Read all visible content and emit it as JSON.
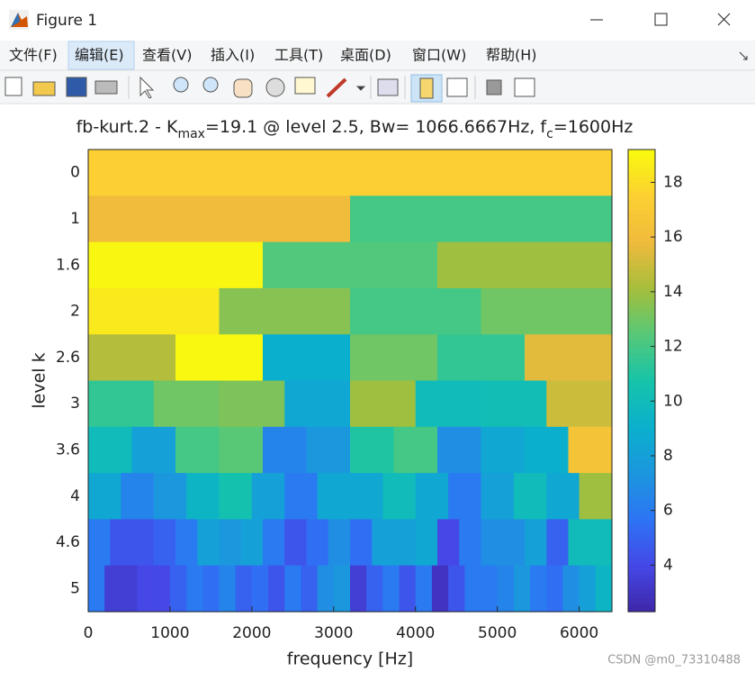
{
  "window": {
    "title": "Figure 1",
    "menus": [
      "文件(F)",
      "编辑(E)",
      "查看(V)",
      "插入(I)",
      "工具(T)",
      "桌面(D)",
      "窗口(W)",
      "帮助(H)"
    ],
    "watermark": "CSDN @m0_73310488"
  },
  "chart_data": {
    "type": "heatmap",
    "title_parts": [
      "fb-kurt.2 - K",
      "max",
      "=19.1 @ level 2.5, Bw= 1066.6667Hz, f",
      "c",
      "=1600Hz"
    ],
    "x_label": "frequency [Hz]",
    "y_label": "level k",
    "xlim": [
      0,
      6400
    ],
    "xticks": [
      0,
      1000,
      2000,
      3000,
      4000,
      5000,
      6000
    ],
    "clim": [
      2.3,
      19.2
    ],
    "cticks": [
      4,
      6,
      8,
      10,
      12,
      14,
      16,
      18
    ],
    "colormap": "parula",
    "rows": [
      {
        "level": "0",
        "values": [
          17.5
        ]
      },
      {
        "level": "1",
        "values": [
          16,
          12
        ]
      },
      {
        "level": "1.6",
        "values": [
          19,
          12.3,
          14
        ]
      },
      {
        "level": "2",
        "values": [
          18.5,
          13.5,
          12,
          13
        ]
      },
      {
        "level": "2.6",
        "values": [
          14.5,
          19.1,
          9,
          13,
          11.5,
          15.5
        ]
      },
      {
        "level": "3",
        "values": [
          11.5,
          13,
          13.3,
          8.5,
          14,
          10,
          10.2,
          15
        ]
      },
      {
        "level": "3.6",
        "values": [
          10,
          8,
          12,
          12.5,
          6.5,
          7.5,
          11,
          12,
          7,
          8.5,
          9,
          16.5
        ]
      },
      {
        "level": "4",
        "values": [
          8.5,
          6.5,
          7.5,
          9.5,
          10.5,
          8,
          6,
          8.5,
          8.5,
          10,
          8.5,
          6,
          8,
          10,
          8.5,
          14
        ]
      },
      {
        "level": "4.6",
        "values": [
          6,
          4.5,
          4.5,
          5,
          6,
          8,
          7.5,
          8,
          6,
          4.5,
          5.5,
          7,
          5.5,
          8,
          8,
          8.5,
          4,
          6,
          7,
          7,
          8,
          5,
          10,
          10
        ]
      },
      {
        "level": "5",
        "values": [
          6,
          3.5,
          3.5,
          4,
          4,
          5,
          6,
          5.5,
          6.5,
          5,
          5.5,
          4.5,
          6,
          5,
          7,
          7.5,
          3.5,
          5,
          6,
          4.5,
          6,
          3,
          4.5,
          6,
          6,
          6.5,
          7.5,
          6,
          5.5,
          7,
          8,
          9.5
        ]
      }
    ]
  }
}
